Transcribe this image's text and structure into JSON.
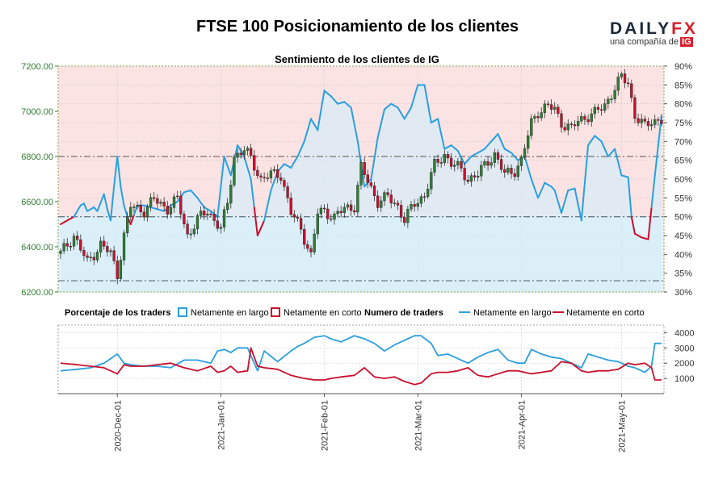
{
  "header": {
    "title": "FTSE 100 Posicionamiento de los clientes",
    "logo_word": "DAILY",
    "logo_fx": "FX",
    "logo_sub": "una compañía de",
    "logo_ig": "IG"
  },
  "colors": {
    "long": "#2a9fdf",
    "short": "#c8102e",
    "candle_up": "#2e7d32",
    "candle_down": "#c8102e",
    "bg_short": "#fbe3e3",
    "bg_long": "#e6f4fb",
    "price_axis": "#2e7d32"
  },
  "chart_data": {
    "type": "line",
    "subtitle": "Sentimiento de los clientes de IG",
    "date_ticks": [
      "2020-Dec-01",
      "2021-Jan-01",
      "2021-Feb-01",
      "2021-Mar-01",
      "2021-Apr-01",
      "2021-May-01"
    ],
    "date_tick_index": [
      17,
      48,
      79,
      107,
      138,
      168
    ],
    "price_axis": {
      "ticks": [
        "6200.00",
        "6400.00",
        "6600.00",
        "6800.00",
        "7000.00",
        "7200.00"
      ],
      "range": [
        6200,
        7200
      ]
    },
    "pct_axis": {
      "ticks": [
        "30%",
        "35%",
        "40%",
        "45%",
        "50%",
        "55%",
        "60%",
        "65%",
        "70%",
        "75%",
        "80%",
        "85%",
        "90%"
      ],
      "range": [
        30,
        90
      ]
    },
    "traders_axis": {
      "ticks": [
        "1000",
        "2000",
        "3000",
        "4000"
      ],
      "range": [
        0,
        4500
      ]
    },
    "reference_lines": {
      "pct": [
        50,
        33
      ],
      "price": [
        6800
      ]
    },
    "legend": {
      "pct_title": "Porcentaje de los traders",
      "pct_long": "Netamente en largo",
      "pct_short": "Netamente en corto",
      "count_title": "Numero de traders",
      "count_long": "Netamente en largo",
      "count_short": "Netamente en corto"
    },
    "n_days": 181,
    "close_points": [
      [
        0,
        6370
      ],
      [
        4,
        6450
      ],
      [
        8,
        6330
      ],
      [
        12,
        6410
      ],
      [
        15,
        6370
      ],
      [
        17,
        6280
      ],
      [
        19,
        6450
      ],
      [
        21,
        6580
      ],
      [
        25,
        6560
      ],
      [
        28,
        6610
      ],
      [
        32,
        6570
      ],
      [
        35,
        6610
      ],
      [
        38,
        6450
      ],
      [
        41,
        6520
      ],
      [
        44,
        6560
      ],
      [
        48,
        6480
      ],
      [
        50,
        6590
      ],
      [
        52,
        6800
      ],
      [
        55,
        6830
      ],
      [
        57,
        6790
      ],
      [
        60,
        6700
      ],
      [
        63,
        6720
      ],
      [
        66,
        6720
      ],
      [
        69,
        6550
      ],
      [
        72,
        6480
      ],
      [
        75,
        6360
      ],
      [
        77,
        6550
      ],
      [
        79,
        6560
      ],
      [
        82,
        6530
      ],
      [
        85,
        6570
      ],
      [
        88,
        6580
      ],
      [
        90,
        6750
      ],
      [
        93,
        6660
      ],
      [
        95,
        6600
      ],
      [
        98,
        6620
      ],
      [
        101,
        6580
      ],
      [
        103,
        6520
      ],
      [
        106,
        6590
      ],
      [
        109,
        6630
      ],
      [
        112,
        6760
      ],
      [
        115,
        6810
      ],
      [
        117,
        6770
      ],
      [
        120,
        6740
      ],
      [
        122,
        6700
      ],
      [
        125,
        6720
      ],
      [
        128,
        6780
      ],
      [
        130,
        6810
      ],
      [
        133,
        6720
      ],
      [
        136,
        6740
      ],
      [
        138,
        6780
      ],
      [
        141,
        6950
      ],
      [
        143,
        7000
      ],
      [
        146,
        7020
      ],
      [
        148,
        7010
      ],
      [
        150,
        6950
      ],
      [
        153,
        6920
      ],
      [
        155,
        6960
      ],
      [
        158,
        6980
      ],
      [
        160,
        6990
      ],
      [
        163,
        7030
      ],
      [
        166,
        7100
      ],
      [
        168,
        7150
      ],
      [
        170,
        7130
      ],
      [
        172,
        6980
      ],
      [
        175,
        6930
      ],
      [
        177,
        6960
      ],
      [
        180,
        6960
      ]
    ],
    "series": [
      {
        "name": "Netamente en largo",
        "values_pct": [
          [
            0,
            48
          ],
          [
            4,
            50
          ],
          [
            6,
            53
          ],
          [
            7,
            53.5
          ],
          [
            8,
            51.5
          ],
          [
            9,
            52
          ],
          [
            10,
            52.5
          ],
          [
            11,
            51.5
          ],
          [
            13,
            56
          ],
          [
            14,
            52
          ],
          [
            15,
            49
          ],
          [
            16,
            58
          ],
          [
            17,
            66
          ],
          [
            18,
            58
          ],
          [
            19,
            53
          ],
          [
            20,
            50
          ],
          [
            21,
            48
          ],
          [
            23,
            53
          ],
          [
            25,
            53
          ],
          [
            27,
            52.5
          ],
          [
            29,
            52
          ],
          [
            31,
            51.5
          ],
          [
            33,
            53
          ],
          [
            35,
            54
          ],
          [
            37,
            56.5
          ],
          [
            39,
            57
          ],
          [
            41,
            55
          ],
          [
            43,
            52.5
          ],
          [
            45,
            51.5
          ],
          [
            47,
            50
          ],
          [
            49,
            66
          ],
          [
            51,
            61
          ],
          [
            53,
            69
          ],
          [
            55,
            66
          ],
          [
            57,
            60
          ],
          [
            59,
            45
          ],
          [
            61,
            49
          ],
          [
            63,
            57
          ],
          [
            65,
            62
          ],
          [
            67,
            64
          ],
          [
            69,
            63
          ],
          [
            71,
            66
          ],
          [
            73,
            70
          ],
          [
            75,
            76
          ],
          [
            77,
            73
          ],
          [
            79,
            83.5
          ],
          [
            81,
            82
          ],
          [
            83,
            80
          ],
          [
            85,
            80.5
          ],
          [
            87,
            79
          ],
          [
            89,
            70
          ],
          [
            91,
            58
          ],
          [
            93,
            60
          ],
          [
            95,
            71
          ],
          [
            97,
            78.5
          ],
          [
            99,
            80
          ],
          [
            101,
            79
          ],
          [
            103,
            76
          ],
          [
            105,
            79
          ],
          [
            107,
            85
          ],
          [
            109,
            85
          ],
          [
            111,
            75
          ],
          [
            113,
            76
          ],
          [
            115,
            68
          ],
          [
            117,
            69
          ],
          [
            119,
            67.5
          ],
          [
            121,
            64
          ],
          [
            123,
            66
          ],
          [
            125,
            67
          ],
          [
            127,
            68
          ],
          [
            129,
            70
          ],
          [
            131,
            72
          ],
          [
            133,
            68
          ],
          [
            135,
            67
          ],
          [
            137,
            65
          ],
          [
            139,
            66
          ],
          [
            141,
            60
          ],
          [
            143,
            55
          ],
          [
            145,
            59
          ],
          [
            147,
            58
          ],
          [
            148,
            57
          ],
          [
            150,
            51
          ],
          [
            152,
            57
          ],
          [
            154,
            57.5
          ],
          [
            156,
            49
          ],
          [
            158,
            69
          ],
          [
            160,
            71.5
          ],
          [
            162,
            70
          ],
          [
            164,
            66
          ],
          [
            166,
            68
          ],
          [
            168,
            61
          ],
          [
            170,
            60.5
          ],
          [
            171,
            50
          ],
          [
            172,
            45.5
          ],
          [
            174,
            44.5
          ],
          [
            176,
            44
          ],
          [
            178,
            61
          ],
          [
            180,
            77
          ]
        ],
        "traders": [
          [
            0,
            1500
          ],
          [
            5,
            1600
          ],
          [
            9,
            1700
          ],
          [
            13,
            2000
          ],
          [
            17,
            2600
          ],
          [
            19,
            2000
          ],
          [
            21,
            1900
          ],
          [
            25,
            1800
          ],
          [
            29,
            1800
          ],
          [
            33,
            1700
          ],
          [
            37,
            2200
          ],
          [
            41,
            2200
          ],
          [
            45,
            2000
          ],
          [
            47,
            2800
          ],
          [
            49,
            2900
          ],
          [
            51,
            2700
          ],
          [
            53,
            3000
          ],
          [
            56,
            3000
          ],
          [
            59,
            1500
          ],
          [
            61,
            2800
          ],
          [
            65,
            2100
          ],
          [
            69,
            2800
          ],
          [
            71,
            3100
          ],
          [
            73,
            3300
          ],
          [
            76,
            3700
          ],
          [
            79,
            3800
          ],
          [
            81,
            3600
          ],
          [
            84,
            3400
          ],
          [
            88,
            3800
          ],
          [
            91,
            3600
          ],
          [
            94,
            3300
          ],
          [
            97,
            2800
          ],
          [
            100,
            3200
          ],
          [
            103,
            3500
          ],
          [
            106,
            3800
          ],
          [
            108,
            3800
          ],
          [
            111,
            3300
          ],
          [
            113,
            2500
          ],
          [
            116,
            2600
          ],
          [
            119,
            2300
          ],
          [
            122,
            2000
          ],
          [
            125,
            2400
          ],
          [
            128,
            2700
          ],
          [
            131,
            2900
          ],
          [
            134,
            2200
          ],
          [
            137,
            2000
          ],
          [
            139,
            2000
          ],
          [
            141,
            2900
          ],
          [
            144,
            2600
          ],
          [
            147,
            2400
          ],
          [
            150,
            2300
          ],
          [
            153,
            2000
          ],
          [
            156,
            1700
          ],
          [
            158,
            2600
          ],
          [
            161,
            2400
          ],
          [
            164,
            2200
          ],
          [
            167,
            2100
          ],
          [
            170,
            1800
          ],
          [
            172,
            1700
          ],
          [
            175,
            1400
          ],
          [
            177,
            1800
          ],
          [
            178,
            3300
          ],
          [
            180,
            3300
          ]
        ]
      },
      {
        "name": "Netamente en corto",
        "traders": [
          [
            0,
            2000
          ],
          [
            5,
            1900
          ],
          [
            9,
            1800
          ],
          [
            13,
            1700
          ],
          [
            17,
            1300
          ],
          [
            19,
            1900
          ],
          [
            21,
            1800
          ],
          [
            25,
            1800
          ],
          [
            29,
            1900
          ],
          [
            33,
            2000
          ],
          [
            37,
            1700
          ],
          [
            41,
            1500
          ],
          [
            45,
            1800
          ],
          [
            47,
            1400
          ],
          [
            49,
            1500
          ],
          [
            51,
            1800
          ],
          [
            53,
            1400
          ],
          [
            56,
            1500
          ],
          [
            57,
            3000
          ],
          [
            59,
            1800
          ],
          [
            61,
            1700
          ],
          [
            65,
            1600
          ],
          [
            69,
            1200
          ],
          [
            71,
            1100
          ],
          [
            73,
            1000
          ],
          [
            76,
            900
          ],
          [
            79,
            900
          ],
          [
            81,
            1000
          ],
          [
            84,
            1100
          ],
          [
            88,
            1200
          ],
          [
            91,
            1700
          ],
          [
            94,
            1100
          ],
          [
            97,
            1000
          ],
          [
            100,
            1100
          ],
          [
            103,
            800
          ],
          [
            106,
            600
          ],
          [
            108,
            700
          ],
          [
            111,
            1300
          ],
          [
            113,
            1400
          ],
          [
            116,
            1400
          ],
          [
            119,
            1500
          ],
          [
            122,
            1700
          ],
          [
            125,
            1200
          ],
          [
            128,
            1100
          ],
          [
            131,
            1300
          ],
          [
            134,
            1500
          ],
          [
            137,
            1500
          ],
          [
            139,
            1400
          ],
          [
            141,
            1300
          ],
          [
            144,
            1400
          ],
          [
            147,
            1500
          ],
          [
            150,
            2100
          ],
          [
            153,
            2000
          ],
          [
            156,
            1500
          ],
          [
            158,
            1400
          ],
          [
            161,
            1500
          ],
          [
            164,
            1500
          ],
          [
            167,
            1600
          ],
          [
            170,
            2000
          ],
          [
            172,
            1900
          ],
          [
            175,
            2000
          ],
          [
            177,
            1700
          ],
          [
            178,
            900
          ],
          [
            180,
            900
          ]
        ]
      }
    ]
  }
}
